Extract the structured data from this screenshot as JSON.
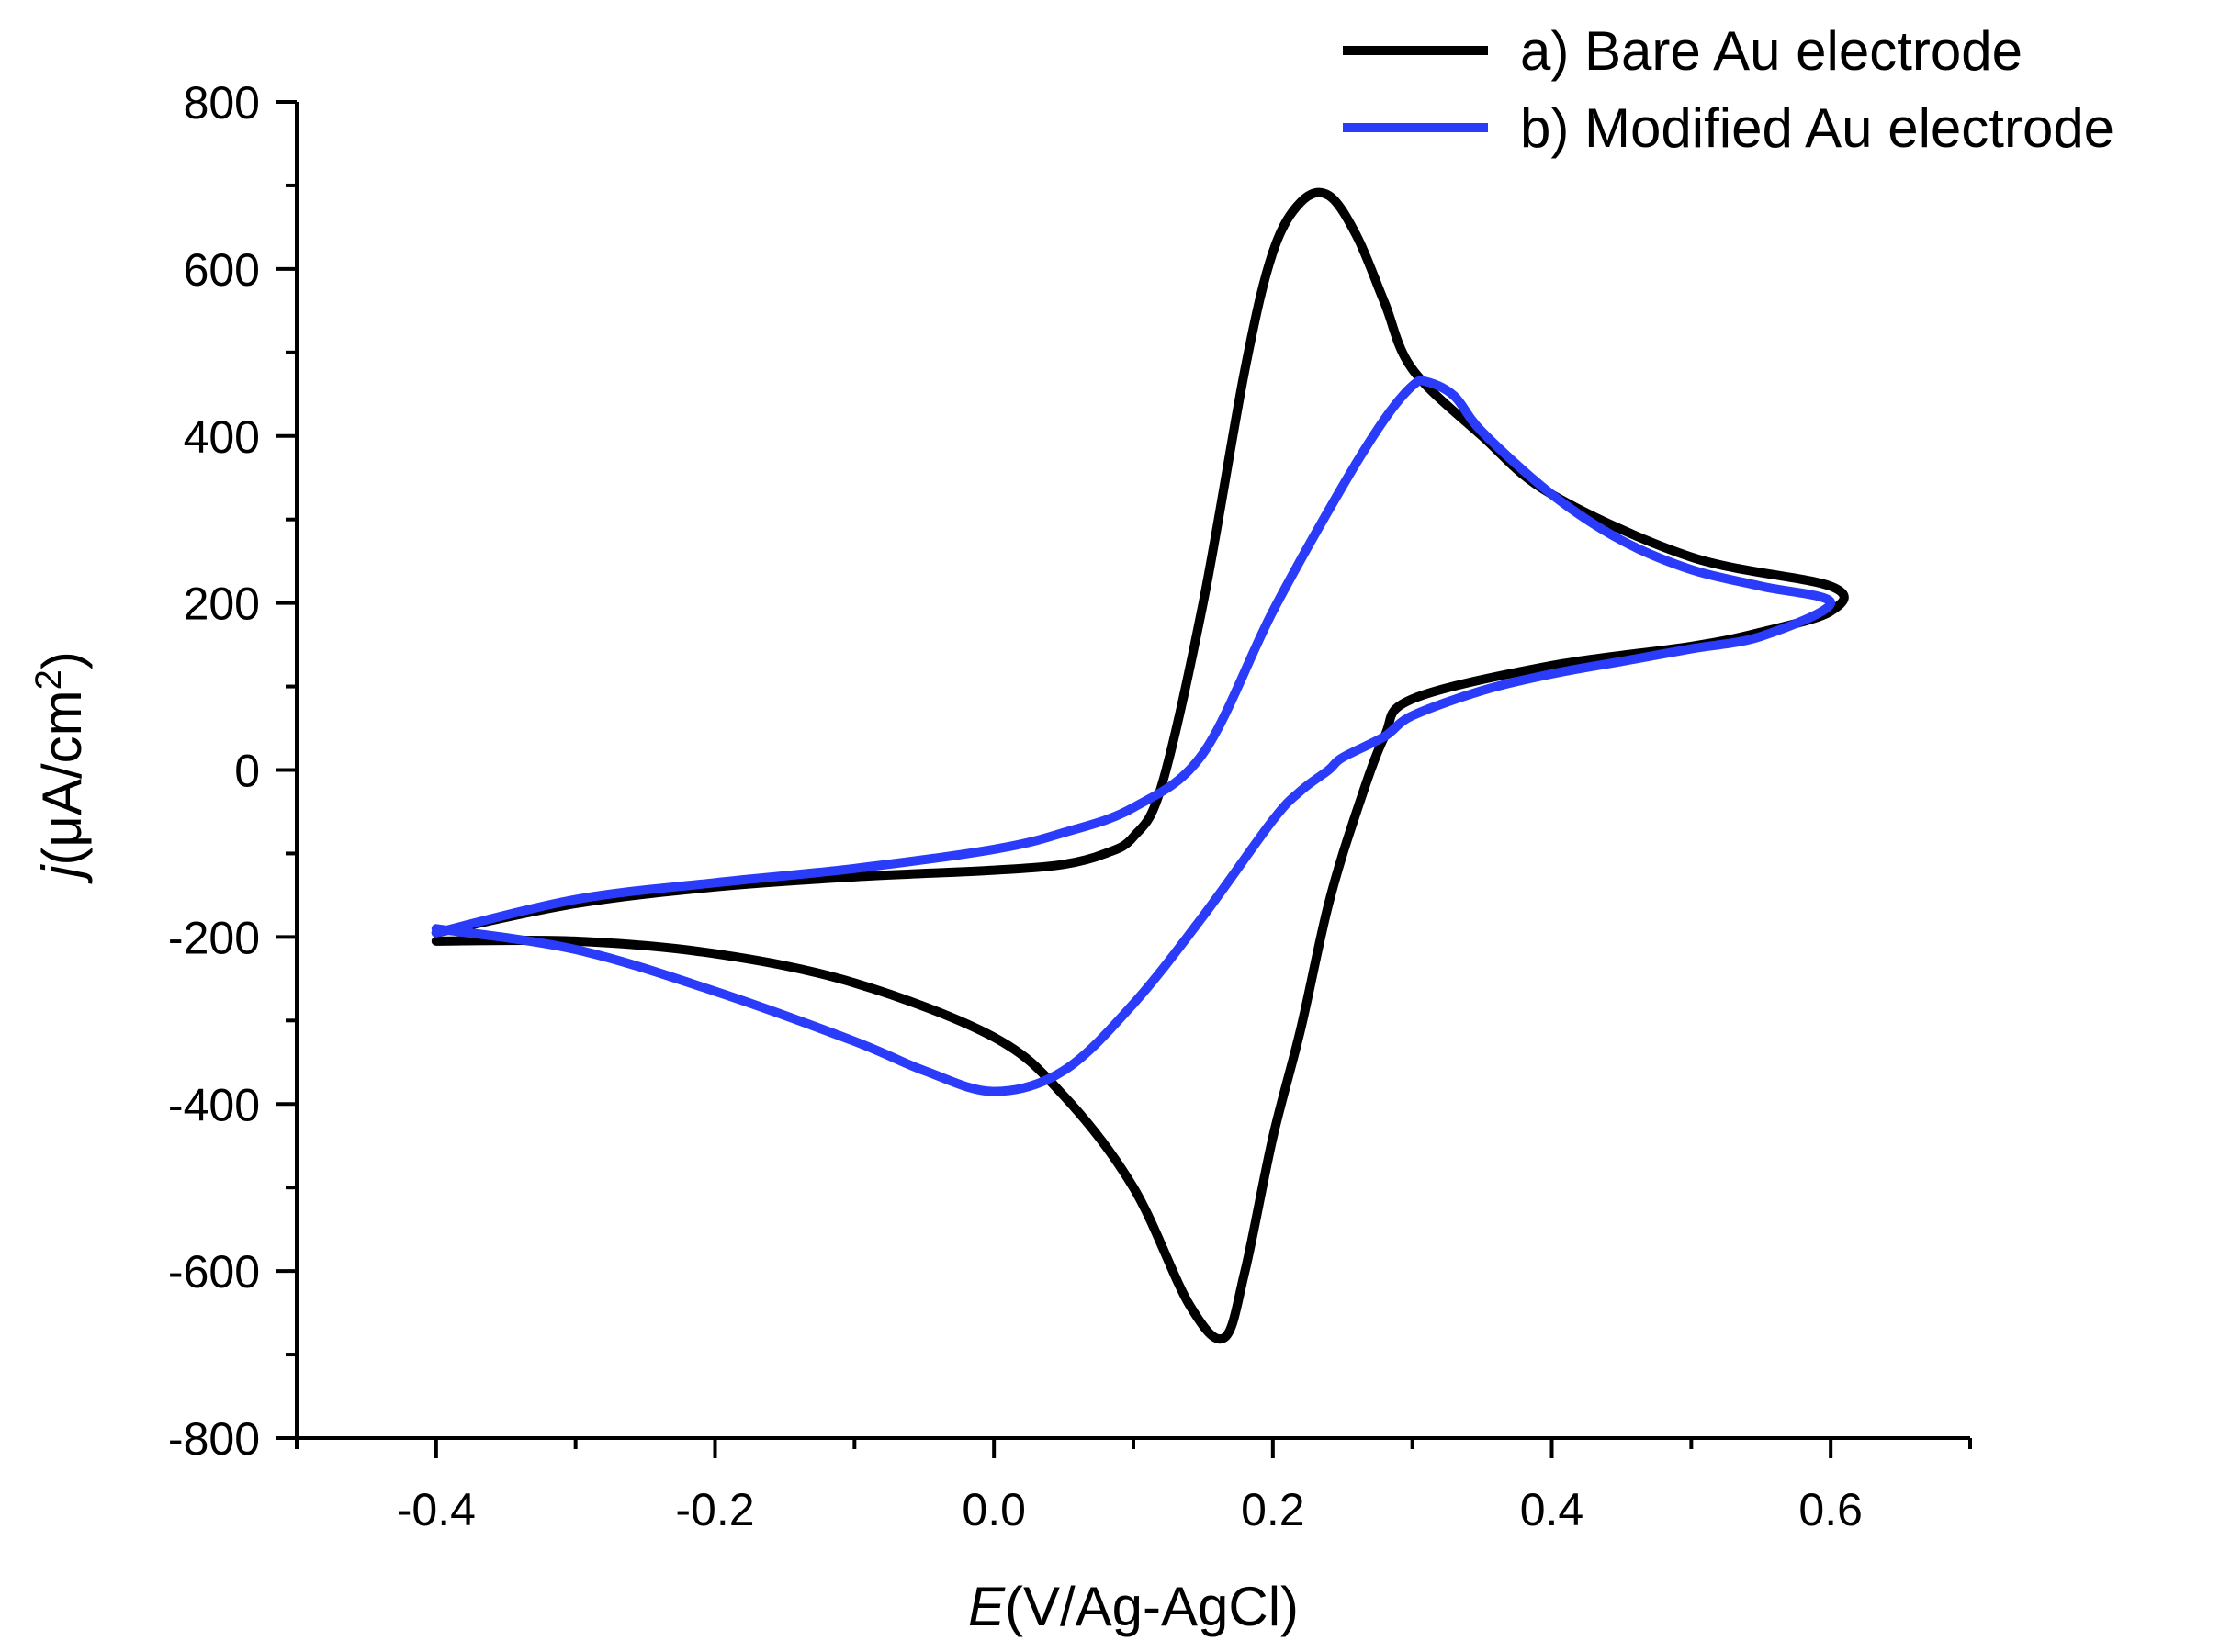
{
  "chart_data": {
    "type": "line",
    "title": "",
    "xlabel": {
      "italic": "E",
      "rest": "(V/Ag-AgCl)"
    },
    "ylabel": {
      "italic": "j",
      "rest": "(μA/cm",
      "sup": "2",
      "close": ")"
    },
    "xlim": [
      -0.5,
      0.7
    ],
    "ylim": [
      -800,
      800
    ],
    "xticks": [
      -0.4,
      -0.2,
      0.0,
      0.2,
      0.4,
      0.6
    ],
    "xtick_labels": [
      "-0.4",
      "-0.2",
      "0.0",
      "0.2",
      "0.4",
      "0.6"
    ],
    "yticks": [
      -800,
      -600,
      -400,
      -200,
      0,
      200,
      400,
      600,
      800
    ],
    "ytick_labels": [
      "-800",
      "-600",
      "-400",
      "-200",
      "0",
      "200",
      "400",
      "600",
      "800"
    ],
    "x_minor_step": 0.1,
    "y_minor_step": 100,
    "grid": false,
    "legend_position": "top-right",
    "series": [
      {
        "name": "a) Bare Au electrode",
        "color": "#000000",
        "x": [
          -0.4,
          -0.3,
          -0.2,
          -0.1,
          0.0,
          0.05,
          0.08,
          0.1,
          0.12,
          0.15,
          0.18,
          0.2,
          0.22,
          0.24,
          0.26,
          0.28,
          0.3,
          0.35,
          0.4,
          0.5,
          0.6,
          0.6,
          0.55,
          0.5,
          0.4,
          0.3,
          0.28,
          0.26,
          0.24,
          0.22,
          0.2,
          0.18,
          0.165,
          0.14,
          0.1,
          0.05,
          0.0,
          -0.1,
          -0.2,
          -0.3,
          -0.4
        ],
        "y": [
          -195,
          -160,
          -140,
          -128,
          -120,
          -113,
          -100,
          -80,
          -20,
          200,
          480,
          620,
          680,
          688,
          640,
          560,
          480,
          400,
          330,
          255,
          220,
          190,
          165,
          148,
          125,
          85,
          40,
          -50,
          -160,
          -310,
          -440,
          -600,
          -680,
          -640,
          -500,
          -390,
          -320,
          -255,
          -220,
          -205,
          -205
        ]
      },
      {
        "name": "b) Modified Au electrode",
        "color": "#2a3bfa",
        "x": [
          -0.4,
          -0.3,
          -0.2,
          -0.1,
          0.0,
          0.05,
          0.1,
          0.15,
          0.2,
          0.25,
          0.28,
          0.3,
          0.31,
          0.33,
          0.35,
          0.4,
          0.45,
          0.5,
          0.55,
          0.6,
          0.55,
          0.5,
          0.45,
          0.4,
          0.35,
          0.3,
          0.28,
          0.25,
          0.24,
          0.22,
          0.2,
          0.15,
          0.1,
          0.05,
          0.0,
          -0.05,
          -0.1,
          -0.2,
          -0.3,
          -0.4
        ],
        "y": [
          -195,
          -155,
          -135,
          -118,
          -95,
          -75,
          -45,
          20,
          190,
          340,
          420,
          460,
          465,
          448,
          405,
          330,
          275,
          240,
          220,
          200,
          160,
          145,
          130,
          115,
          95,
          65,
          40,
          15,
          0,
          -25,
          -60,
          -175,
          -280,
          -360,
          -385,
          -360,
          -325,
          -265,
          -215,
          -190
        ]
      }
    ]
  }
}
